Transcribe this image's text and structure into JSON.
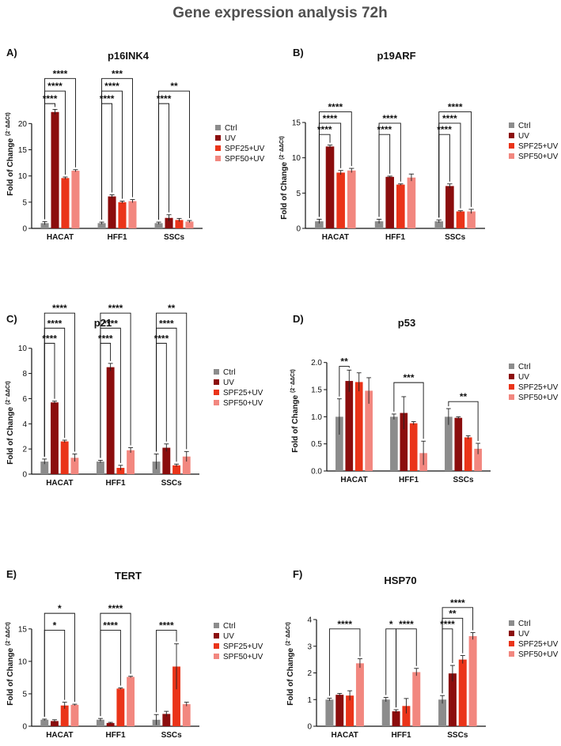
{
  "page_title": "Gene expression analysis 72h",
  "chart_data": [
    {
      "type": "bar",
      "panel": "A)",
      "title": "p16INK4",
      "ylabel": "Fold of Change",
      "ylabel_superscript": "(2⁻ΔΔCt)",
      "categories": [
        "HACAT",
        "HFF1",
        "SSCs"
      ],
      "ylim": [
        0,
        30
      ],
      "yticks": [
        0,
        5,
        10,
        15,
        20
      ],
      "series": [
        {
          "name": "Ctrl",
          "values": [
            1.0,
            1.0,
            1.0
          ],
          "errors": [
            0.3,
            0.2,
            0.2
          ]
        },
        {
          "name": "UV",
          "values": [
            22.2,
            6.1,
            2.0
          ],
          "errors": [
            0.5,
            0.3,
            0.6
          ]
        },
        {
          "name": "SPF25+UV",
          "values": [
            9.6,
            5.0,
            1.6
          ],
          "errors": [
            0.2,
            0.2,
            0.3
          ]
        },
        {
          "name": "SPF50+UV",
          "values": [
            11.0,
            5.2,
            1.3
          ],
          "errors": [
            0.2,
            0.3,
            0.2
          ]
        }
      ],
      "significance": [
        {
          "group": 0,
          "from": 0,
          "to": 1,
          "label": "****",
          "y": 23.8
        },
        {
          "group": 0,
          "from": 0,
          "to": 2,
          "label": "****",
          "y": 26.2
        },
        {
          "group": 0,
          "from": 0,
          "to": 3,
          "label": "****",
          "y": 28.6
        },
        {
          "group": 1,
          "from": 0,
          "to": 1,
          "label": "****",
          "y": 23.8
        },
        {
          "group": 1,
          "from": 0,
          "to": 2,
          "label": "****",
          "y": 26.2
        },
        {
          "group": 1,
          "from": 0,
          "to": 3,
          "label": "***",
          "y": 28.6
        },
        {
          "group": 2,
          "from": 0,
          "to": 1,
          "label": "****",
          "y": 23.8
        },
        {
          "group": 2,
          "from": 0,
          "to": 3,
          "label": "**",
          "y": 26.2
        }
      ]
    },
    {
      "type": "bar",
      "panel": "B)",
      "title": "p19ARF",
      "ylabel": "Fold of Change",
      "ylabel_superscript": "(2⁻ΔΔCt)",
      "categories": [
        "HACAT",
        "HFF1",
        "SSCs"
      ],
      "ylim": [
        0,
        15
      ],
      "yticks": [
        0,
        5,
        10,
        15
      ],
      "series": [
        {
          "name": "Ctrl",
          "values": [
            1.0,
            1.0,
            1.0
          ],
          "errors": [
            0.3,
            0.3,
            0.2
          ]
        },
        {
          "name": "UV",
          "values": [
            11.6,
            7.3,
            6.0
          ],
          "errors": [
            0.2,
            0.1,
            0.3
          ]
        },
        {
          "name": "SPF25+UV",
          "values": [
            7.9,
            6.2,
            2.4
          ],
          "errors": [
            0.3,
            0.1,
            0.1
          ]
        },
        {
          "name": "SPF50+UV",
          "values": [
            8.2,
            7.2,
            2.4
          ],
          "errors": [
            0.3,
            0.5,
            0.3
          ]
        }
      ],
      "significance": [
        {
          "group": 0,
          "from": 0,
          "to": 1,
          "label": "****",
          "y": 13.3
        },
        {
          "group": 0,
          "from": 0,
          "to": 2,
          "label": "****",
          "y": 14.9
        },
        {
          "group": 0,
          "from": 0,
          "to": 3,
          "label": "****",
          "y": 16.5
        },
        {
          "group": 1,
          "from": 0,
          "to": 1,
          "label": "****",
          "y": 13.3
        },
        {
          "group": 1,
          "from": 0,
          "to": 2,
          "label": "****",
          "y": 14.9
        },
        {
          "group": 2,
          "from": 0,
          "to": 1,
          "label": "****",
          "y": 13.3
        },
        {
          "group": 2,
          "from": 0,
          "to": 2,
          "label": "****",
          "y": 14.9
        },
        {
          "group": 2,
          "from": 0,
          "to": 3,
          "label": "****",
          "y": 16.5
        }
      ]
    },
    {
      "type": "bar",
      "panel": "C)",
      "title": "p21",
      "ylabel": "Fold of Change",
      "ylabel_superscript": "(2⁻ΔΔCt)",
      "categories": [
        "HACAT",
        "HFF1",
        "SSCs"
      ],
      "ylim": [
        0,
        13.5
      ],
      "yticks": [
        0,
        2,
        4,
        6,
        8,
        10
      ],
      "series": [
        {
          "name": "Ctrl",
          "values": [
            1.0,
            1.0,
            1.0
          ],
          "errors": [
            0.2,
            0.1,
            0.6
          ]
        },
        {
          "name": "UV",
          "values": [
            5.7,
            8.5,
            2.1
          ],
          "errors": [
            0.1,
            0.3,
            0.3
          ]
        },
        {
          "name": "SPF25+UV",
          "values": [
            2.6,
            0.5,
            0.7
          ],
          "errors": [
            0.1,
            0.2,
            0.1
          ]
        },
        {
          "name": "SPF50+UV",
          "values": [
            1.3,
            1.9,
            1.4
          ],
          "errors": [
            0.3,
            0.2,
            0.4
          ]
        }
      ],
      "significance": [
        {
          "group": 0,
          "from": 0,
          "to": 1,
          "label": "****",
          "y": 10.4
        },
        {
          "group": 0,
          "from": 0,
          "to": 2,
          "label": "****",
          "y": 11.6
        },
        {
          "group": 0,
          "from": 0,
          "to": 3,
          "label": "****",
          "y": 12.8
        },
        {
          "group": 1,
          "from": 0,
          "to": 1,
          "label": "****",
          "y": 10.4
        },
        {
          "group": 1,
          "from": 0,
          "to": 2,
          "label": "****",
          "y": 11.6
        },
        {
          "group": 1,
          "from": 0,
          "to": 3,
          "label": "****",
          "y": 12.8
        },
        {
          "group": 2,
          "from": 0,
          "to": 1,
          "label": "****",
          "y": 10.4
        },
        {
          "group": 2,
          "from": 0,
          "to": 2,
          "label": "****",
          "y": 11.6
        },
        {
          "group": 2,
          "from": 0,
          "to": 3,
          "label": "**",
          "y": 12.8
        }
      ]
    },
    {
      "type": "bar",
      "panel": "D)",
      "title": "p53",
      "ylabel": "Fold of Change",
      "ylabel_superscript": "(2⁻ΔΔCt)",
      "categories": [
        "HACAT",
        "HFF1",
        "SSCs"
      ],
      "ylim": [
        0,
        2.2
      ],
      "yticks": [
        0.0,
        0.5,
        1.0,
        1.5,
        2.0
      ],
      "tick_decimals": 1,
      "series": [
        {
          "name": "Ctrl",
          "values": [
            1.0,
            1.0,
            1.0
          ],
          "errors": [
            0.33,
            0.05,
            0.15
          ]
        },
        {
          "name": "UV",
          "values": [
            1.66,
            1.07,
            0.98
          ],
          "errors": [
            0.2,
            0.3,
            0.02
          ]
        },
        {
          "name": "SPF25+UV",
          "values": [
            1.64,
            0.88,
            0.62
          ],
          "errors": [
            0.17,
            0.03,
            0.03
          ]
        },
        {
          "name": "SPF50+UV",
          "values": [
            1.48,
            0.33,
            0.41
          ],
          "errors": [
            0.24,
            0.22,
            0.1
          ]
        }
      ],
      "significance": [
        {
          "group": 0,
          "from": 0,
          "to": 1,
          "label": "**",
          "y": 1.93
        },
        {
          "group": 1,
          "from": 0,
          "to": 3,
          "label": "***",
          "y": 1.63
        },
        {
          "group": 2,
          "from": 0,
          "to": 3,
          "label": "**",
          "y": 1.28
        }
      ]
    },
    {
      "type": "bar",
      "panel": "E)",
      "title": "TERT",
      "ylabel": "Fold of Change",
      "ylabel_superscript": "(2⁻ΔΔCt)",
      "categories": [
        "HACAT",
        "HFF1",
        "SSCs"
      ],
      "ylim": [
        0,
        19
      ],
      "yticks": [
        0,
        5,
        10,
        15
      ],
      "series": [
        {
          "name": "Ctrl",
          "values": [
            1.0,
            1.0,
            1.0
          ],
          "errors": [
            0.1,
            0.2,
            0.8
          ]
        },
        {
          "name": "UV",
          "values": [
            0.8,
            0.5,
            1.9
          ],
          "errors": [
            0.2,
            0.1,
            0.4
          ]
        },
        {
          "name": "SPF25+UV",
          "values": [
            3.2,
            5.8,
            9.2
          ],
          "errors": [
            0.5,
            0.1,
            3.5
          ]
        },
        {
          "name": "SPF50+UV",
          "values": [
            3.3,
            7.6,
            3.4
          ],
          "errors": [
            0.1,
            0.1,
            0.3
          ]
        }
      ],
      "significance": [
        {
          "group": 0,
          "from": 0,
          "to": 2,
          "label": "*",
          "y": 14.8
        },
        {
          "group": 0,
          "from": 0,
          "to": 3,
          "label": "*",
          "y": 17.4
        },
        {
          "group": 1,
          "from": 0,
          "to": 2,
          "label": "****",
          "y": 14.8
        },
        {
          "group": 1,
          "from": 0,
          "to": 3,
          "label": "****",
          "y": 17.4
        },
        {
          "group": 2,
          "from": 0,
          "to": 2,
          "label": "****",
          "y": 14.8
        }
      ]
    },
    {
      "type": "bar",
      "panel": "F)",
      "title": "HSP70",
      "ylabel": "Fold of Change",
      "ylabel_superscript": "(2⁻ΔΔCt)",
      "categories": [
        "HACAT",
        "HFF1",
        "SSCs"
      ],
      "ylim": [
        0,
        4.8
      ],
      "yticks": [
        0,
        1,
        2,
        3,
        4
      ],
      "series": [
        {
          "name": "Ctrl",
          "values": [
            1.0,
            1.0,
            1.0
          ],
          "errors": [
            0.05,
            0.08,
            0.15
          ]
        },
        {
          "name": "UV",
          "values": [
            1.18,
            0.56,
            1.98
          ],
          "errors": [
            0.05,
            0.06,
            0.3
          ]
        },
        {
          "name": "SPF25+UV",
          "values": [
            1.15,
            0.76,
            2.5
          ],
          "errors": [
            0.18,
            0.28,
            0.15
          ]
        },
        {
          "name": "SPF50+UV",
          "values": [
            2.36,
            2.03,
            3.38
          ],
          "errors": [
            0.17,
            0.14,
            0.13
          ]
        }
      ],
      "significance": [
        {
          "group": 0,
          "from": 0,
          "to": 3,
          "label": "****",
          "y": 3.65
        },
        {
          "group": 1,
          "from": 0,
          "to": 1,
          "label": "*",
          "y": 3.65
        },
        {
          "group": 1,
          "from": 1,
          "to": 3,
          "label": "****",
          "y": 3.65
        },
        {
          "group": 2,
          "from": 0,
          "to": 1,
          "label": "****",
          "y": 3.65
        },
        {
          "group": 2,
          "from": 0,
          "to": 2,
          "label": "**",
          "y": 4.05
        },
        {
          "group": 2,
          "from": 0,
          "to": 3,
          "label": "****",
          "y": 4.45
        }
      ]
    }
  ],
  "colors": {
    "Ctrl": "#8c8c8c",
    "UV": "#8b0d0d",
    "SPF25+UV": "#ea3419",
    "SPF50+UV": "#f2877f"
  }
}
